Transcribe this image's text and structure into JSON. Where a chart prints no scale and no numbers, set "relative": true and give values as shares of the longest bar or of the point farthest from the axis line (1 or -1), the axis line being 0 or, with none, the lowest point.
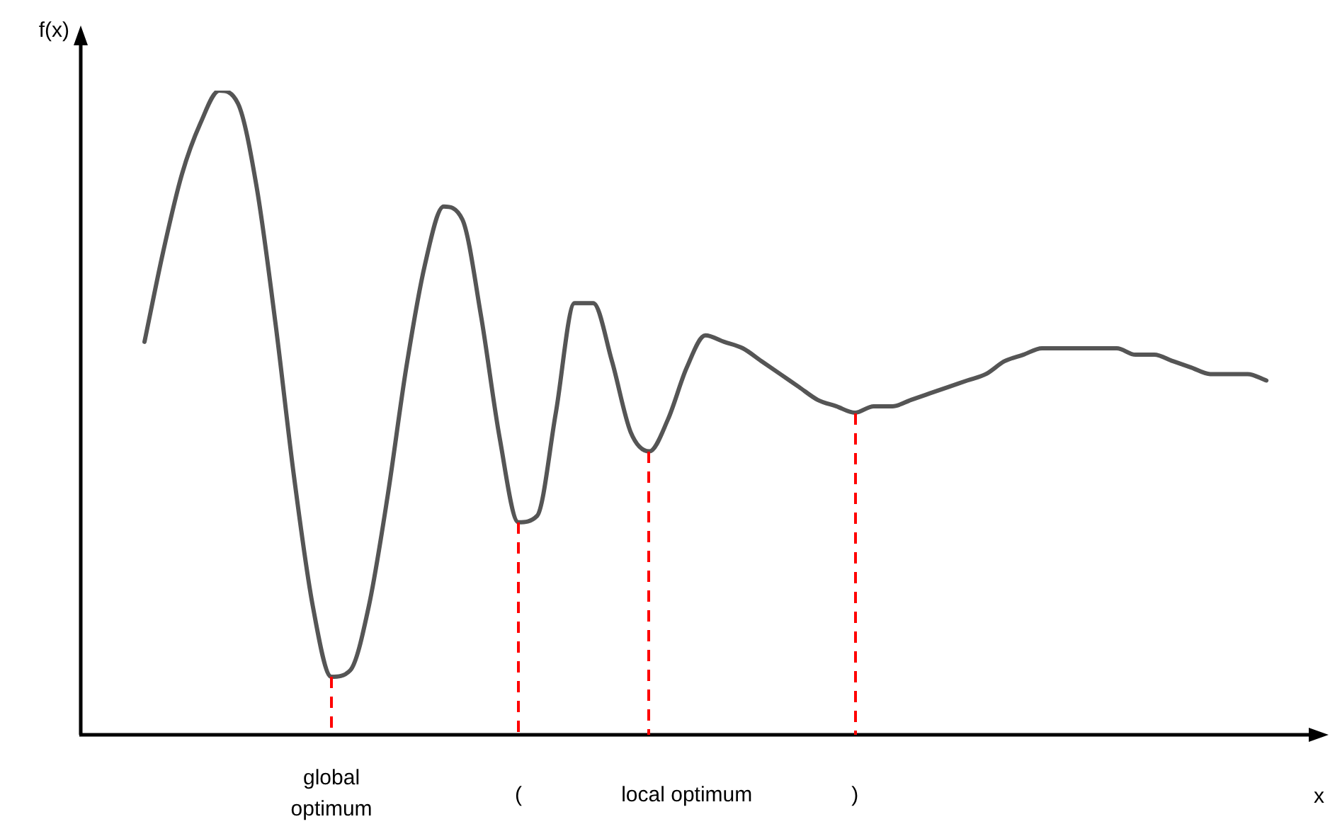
{
  "chart_data": {
    "type": "line",
    "relative": true,
    "xlabel": "x",
    "ylabel": "f(x)",
    "color": "#555555",
    "marker": "none",
    "categories": [
      null,
      null,
      null,
      null,
      null,
      null,
      null,
      null,
      null,
      null,
      null,
      null,
      null,
      null,
      null,
      null,
      null,
      null,
      null,
      null,
      null,
      null,
      null,
      null,
      null,
      null,
      null,
      null,
      null,
      null,
      null,
      null,
      null,
      null,
      null,
      null,
      null,
      null,
      null,
      null,
      null,
      null,
      null,
      null,
      null,
      null,
      null,
      null,
      null,
      null,
      null,
      null,
      null,
      null,
      null,
      null,
      null,
      null,
      null,
      null,
      null
    ],
    "values": [
      0.61,
      0.75,
      0.87,
      0.95,
      1,
      0.98,
      0.85,
      0.64,
      0.4,
      0.2,
      0.09,
      0.1,
      0.2,
      0.37,
      0.57,
      0.73,
      0.82,
      0.8,
      0.65,
      0.46,
      0.33,
      0.34,
      0.5,
      0.67,
      0.67,
      0.58,
      0.47,
      0.44,
      0.49,
      0.57,
      0.62,
      0.61,
      0.6,
      0.58,
      0.56,
      0.54,
      0.52,
      0.51,
      0.5,
      0.51,
      0.51,
      0.52,
      0.53,
      0.54,
      0.55,
      0.56,
      0.58,
      0.59,
      0.6,
      0.6,
      0.6,
      0.6,
      0.6,
      0.59,
      0.59,
      0.58,
      0.57,
      0.56,
      0.56,
      0.56,
      0.55
    ],
    "annotations": [
      "global\noptimum",
      "(",
      "local optimum",
      ")"
    ]
  }
}
